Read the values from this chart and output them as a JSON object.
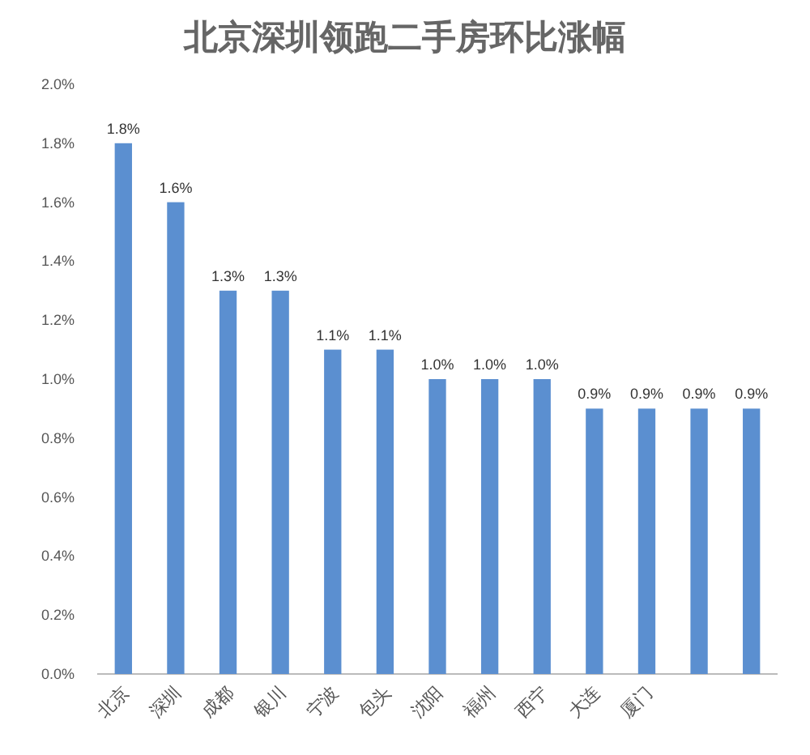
{
  "chart_data": {
    "type": "bar",
    "title": "北京深圳领跑二手房环比涨幅",
    "categories": [
      "北京",
      "深圳",
      "成都",
      "银川",
      "宁波",
      "包头",
      "沈阳",
      "福州",
      "西宁",
      "大连",
      "厦门",
      null,
      null
    ],
    "values": [
      1.8,
      1.6,
      1.3,
      1.3,
      1.1,
      1.1,
      1.0,
      1.0,
      1.0,
      0.9,
      0.9,
      0.9,
      0.9
    ],
    "value_labels": [
      "1.8%",
      "1.6%",
      "1.3%",
      "1.3%",
      "1.1%",
      "1.1%",
      "1.0%",
      "1.0%",
      "1.0%",
      "0.9%",
      "0.9%",
      "0.9%",
      "0.9%"
    ],
    "color": "#5b8fd0",
    "ylim": [
      0,
      2.0
    ],
    "yticks": [
      {
        "value": 0,
        "label": "0.0%"
      },
      {
        "value": 0.2,
        "label": "0.2%"
      },
      {
        "value": 0.4,
        "label": "0.4%"
      },
      {
        "value": 0.6,
        "label": "0.6%"
      },
      {
        "value": 0.8,
        "label": "0.8%"
      },
      {
        "value": 1.0,
        "label": "1.0%"
      },
      {
        "value": 1.2,
        "label": "1.2%"
      },
      {
        "value": 1.4,
        "label": "1.4%"
      },
      {
        "value": 1.6,
        "label": "1.6%"
      },
      {
        "value": 1.8,
        "label": "1.8%"
      },
      {
        "value": 2.0,
        "label": "2.0%"
      }
    ],
    "grid": false
  }
}
